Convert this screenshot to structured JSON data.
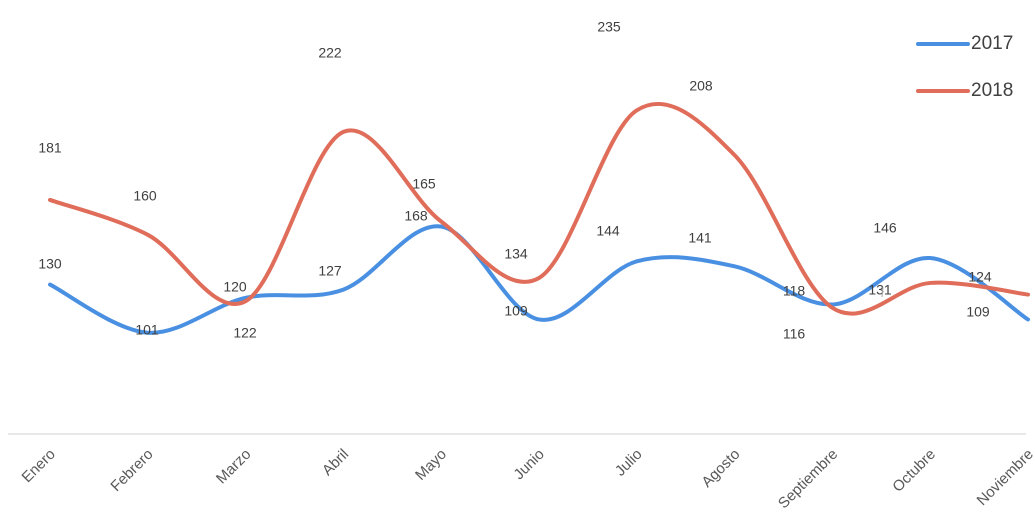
{
  "chart_data": {
    "type": "line",
    "title": "",
    "xlabel": "",
    "ylabel": "",
    "categories": [
      "Enero",
      "Febrero",
      "Marzo",
      "Abril",
      "Mayo",
      "Junio",
      "Julio",
      "Agosto",
      "Septiembre",
      "Octubre",
      "Noviembre"
    ],
    "series": [
      {
        "name": "2017",
        "color": "#4a90e2",
        "values": [
          130,
          101,
          122,
          127,
          165,
          109,
          144,
          141,
          118,
          146,
          109
        ]
      },
      {
        "name": "2018",
        "color": "#e06c5a",
        "values": [
          181,
          160,
          120,
          222,
          168,
          134,
          235,
          208,
          116,
          131,
          124
        ]
      }
    ],
    "ylim": [
      40,
      250
    ],
    "grid": false,
    "smooth": true,
    "legend_position": "top-right"
  }
}
